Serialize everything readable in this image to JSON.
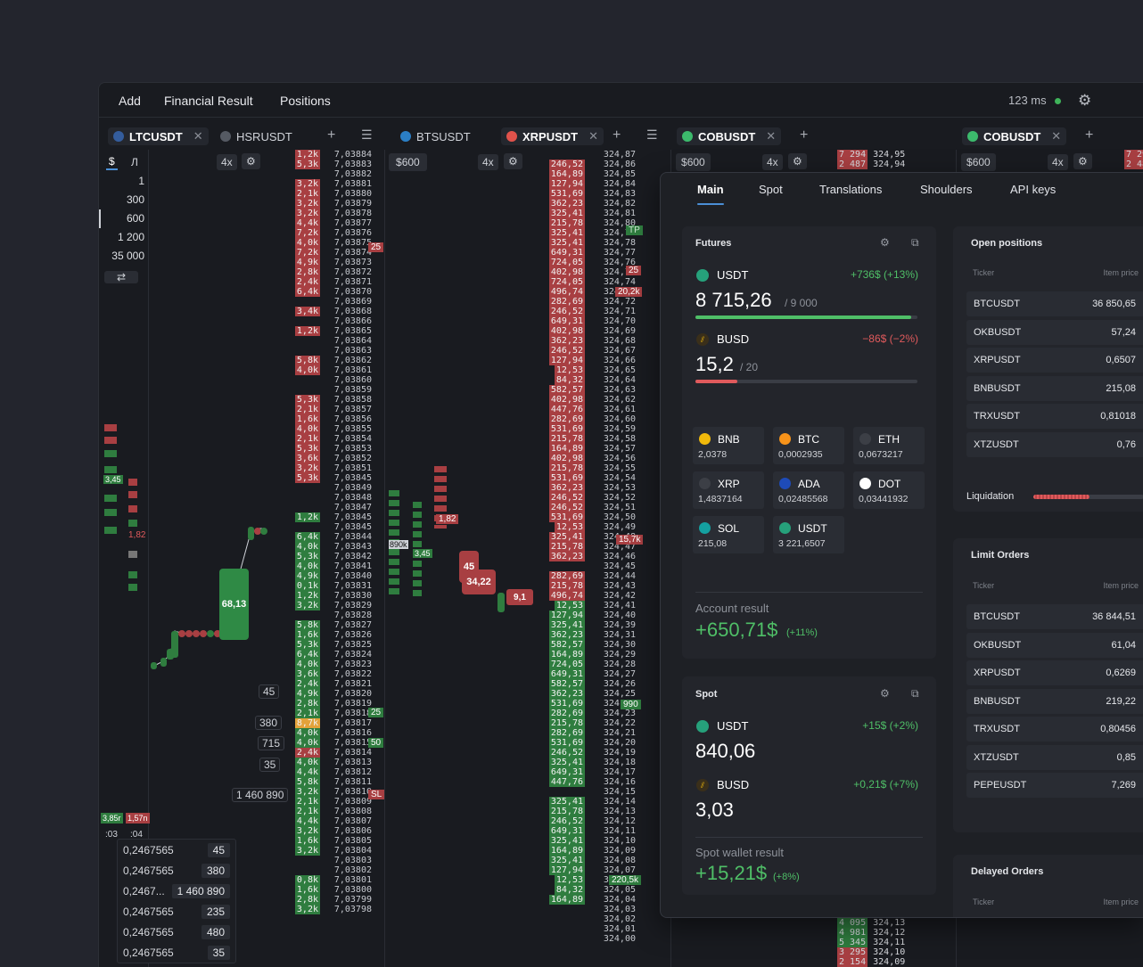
{
  "topbar": {
    "menu": [
      "Add",
      "Financial Result",
      "Positions"
    ],
    "latency": "123 ms"
  },
  "tabs": [
    {
      "label": "LTCUSDT",
      "active": true
    },
    {
      "label": "HSRUSDT",
      "active": false
    },
    {
      "label": "BTSUSDT",
      "active": false
    },
    {
      "label": "XRPUSDT",
      "active": true
    },
    {
      "label": "COBUSDT",
      "active": true
    },
    {
      "label": "COBUSDT",
      "active": true
    }
  ],
  "controls": {
    "currency": "$",
    "lots": "Л",
    "leverage": "4x",
    "amount": "600",
    "amount_symbol": "$"
  },
  "volume_options": [
    "1",
    "300",
    "600",
    "1 200",
    "35 000"
  ],
  "ladder_ltc_prices": [
    "7,03884",
    "7,03883",
    "7,03882",
    "7,03881",
    "7,03880",
    "7,03879",
    "7,03878",
    "7,03877",
    "7,03876",
    "7,03875",
    "7,03874",
    "7,03873",
    "7,03872",
    "7,03871",
    "7,03870",
    "7,03869",
    "7,03868",
    "7,03866",
    "7,03865",
    "7,03864",
    "7,03863",
    "7,03862",
    "7,03861",
    "7,03860",
    "7,03859",
    "7,03858",
    "7,03857",
    "7,03856",
    "7,03855",
    "7,03854",
    "7,03853",
    "7,03852",
    "7,03851",
    "7,03845",
    "7,03849",
    "7,03848",
    "7,03847",
    "7,03845",
    "7,03845",
    "7,03844",
    "7,03843",
    "7,03842",
    "7,03841",
    "7,03840",
    "7,03831",
    "7,03830",
    "7,03829",
    "7,03828",
    "7,03827",
    "7,03826",
    "7,03825",
    "7,03824",
    "7,03823",
    "7,03822",
    "7,03821",
    "7,03820",
    "7,03819",
    "7,03818",
    "7,03817",
    "7,03816",
    "7,03815",
    "7,03814",
    "7,03813",
    "7,03812",
    "7,03811",
    "7,03810",
    "7,03809",
    "7,03808",
    "7,03807",
    "7,03806",
    "7,03805",
    "7,03804",
    "7,03803",
    "7,03802",
    "7,03801",
    "7,03800",
    "7,03799",
    "7,03798"
  ],
  "ladder_xrp_prices": [
    "324,87",
    "324,86",
    "324,85",
    "324,84",
    "324,83",
    "324,82",
    "324,81",
    "324,80",
    "324,79",
    "324,78",
    "324,77",
    "324,76",
    "324,75",
    "324,74",
    "324,73",
    "324,72",
    "324,71",
    "324,70",
    "324,69",
    "324,68",
    "324,67",
    "324,66",
    "324,65",
    "324,64",
    "324,63",
    "324,62",
    "324,61",
    "324,60",
    "324,59",
    "324,58",
    "324,57",
    "324,56",
    "324,55",
    "324,54",
    "324,53",
    "324,52",
    "324,51",
    "324,50",
    "324,49",
    "324,48",
    "324,47",
    "324,46",
    "324,45",
    "324,44",
    "324,43",
    "324,42",
    "324,41",
    "324,40",
    "324,39",
    "324,31",
    "324,30",
    "324,29",
    "324,28",
    "324,27",
    "324,26",
    "324,25",
    "324,24",
    "324,23",
    "324,22",
    "324,21",
    "324,20",
    "324,19",
    "324,18",
    "324,17",
    "324,16",
    "324,15",
    "324,14",
    "324,13",
    "324,12",
    "324,11",
    "324,10",
    "324,09",
    "324,08",
    "324,07",
    "324,06",
    "324,05",
    "324,04",
    "324,03",
    "324,02",
    "324,01",
    "324,00"
  ],
  "ladder_labels": {
    "a": "25",
    "b": "25",
    "c": "50",
    "d": "SL",
    "e": "TP",
    "f": "25",
    "g": "20,2k",
    "h": "15,7k",
    "i": "990",
    "j": "220,5k"
  },
  "bubbles": {
    "big": "68,13",
    "b1": "45",
    "b2": "34,22",
    "b3": "9,1",
    "v1": "3,45",
    "v2": "1,82",
    "v3": "890k",
    "v4": "3,45",
    "v5": "1,82",
    "s1": "3,85r",
    "s2": "1,57n",
    "t1": ":03",
    "t2": ":04"
  },
  "side_qty": [
    {
      "q": "45"
    },
    {
      "q": "380"
    },
    {
      "q": "715"
    },
    {
      "q": "35"
    },
    {
      "q": "1 460 890"
    }
  ],
  "bottom_table": [
    {
      "price": "0,2467565",
      "qty": "45"
    },
    {
      "price": "0,2467565",
      "qty": "380"
    },
    {
      "price": "0,2467...",
      "qty": "1 460 890"
    },
    {
      "price": "0,2467565",
      "qty": "235"
    },
    {
      "price": "0,2467565",
      "qty": "480"
    },
    {
      "price": "0,2467565",
      "qty": "35"
    }
  ],
  "cob_ladder": {
    "p1": "324,95",
    "p2": "324,94",
    "q1": "7 294",
    "q2": "2 487",
    "q3": "7 29",
    "q4": "2 48"
  },
  "bottom_cob": [
    {
      "q": "4 095",
      "p": "324,13"
    },
    {
      "q": "4 981",
      "p": "324,12"
    },
    {
      "q": "5 345",
      "p": "324,11"
    },
    {
      "q": "3 295",
      "p": "324,10"
    },
    {
      "q": "2 154",
      "p": "324,09"
    }
  ],
  "panel": {
    "tabs": [
      "Main",
      "Spot",
      "Translations",
      "Shoulders",
      "API keys"
    ],
    "futures": {
      "title": "Futures",
      "usdt": {
        "name": "USDT",
        "change": "+736$ (+13%)",
        "value": "8 715,26",
        "limit": "9 000",
        "progress": 0.97
      },
      "busd": {
        "name": "BUSD",
        "change": "−86$ (−2%)",
        "value": "15,2",
        "limit": "20",
        "progress": 0.19
      },
      "assets": [
        {
          "name": "BNB",
          "value": "2,0378",
          "color": "#f0b90b"
        },
        {
          "name": "BTC",
          "value": "0,0002935",
          "color": "#f7931a"
        },
        {
          "name": "ETH",
          "value": "0,0673217",
          "color": "#3c3f46"
        },
        {
          "name": "XRP",
          "value": "1,4837164",
          "color": "#3c3f46"
        },
        {
          "name": "ADA",
          "value": "0,02485568",
          "color": "#1e4bb8"
        },
        {
          "name": "DOT",
          "value": "0,03441932",
          "color": "#ffffff"
        },
        {
          "name": "SOL",
          "value": "215,08",
          "color": "#14a0a0"
        },
        {
          "name": "USDT",
          "value": "3 221,6507",
          "color": "#26a17b"
        }
      ],
      "result_label": "Account result",
      "result_value": "650,71$",
      "result_pct": "(+11%)"
    },
    "spot": {
      "title": "Spot",
      "usdt": {
        "name": "USDT",
        "change": "+15$ (+2%)",
        "value": "840,06"
      },
      "busd": {
        "name": "BUSD",
        "change": "+0,21$ (+7%)",
        "value": "3,03"
      },
      "result_label": "Spot wallet result",
      "result_value": "15,21$",
      "result_pct": "(+8%)"
    },
    "open_positions": {
      "title": "Open positions",
      "headers": [
        "Ticker",
        "Item price"
      ],
      "rows": [
        {
          "t": "BTCUSDT",
          "p": "36 850,65"
        },
        {
          "t": "OKBUSDT",
          "p": "57,24"
        },
        {
          "t": "XRPUSDT",
          "p": "0,6507"
        },
        {
          "t": "BNBUSDT",
          "p": "215,08"
        },
        {
          "t": "TRXUSDT",
          "p": "0,81018"
        },
        {
          "t": "XTZUSDT",
          "p": "0,76"
        }
      ],
      "liquidation": "Liquidation"
    },
    "limit_orders": {
      "title": "Limit Orders",
      "headers": [
        "Ticker",
        "Item price"
      ],
      "rows": [
        {
          "t": "BTCUSDT",
          "p": "36 844,51"
        },
        {
          "t": "OKBUSDT",
          "p": "61,04"
        },
        {
          "t": "XRPUSDT",
          "p": "0,6269"
        },
        {
          "t": "BNBUSDT",
          "p": "219,22"
        },
        {
          "t": "TRXUSDT",
          "p": "0,80456"
        },
        {
          "t": "XTZUSDT",
          "p": "0,85"
        },
        {
          "t": "PEPEUSDT",
          "p": "7,269"
        }
      ]
    },
    "delayed_orders": {
      "title": "Delayed Orders",
      "headers": [
        "Ticker",
        "Item price"
      ]
    }
  },
  "colors": {
    "accent": "#4b8fd6",
    "green": "#4fbf67",
    "red": "#e05a5c",
    "bg": "#191b20"
  }
}
